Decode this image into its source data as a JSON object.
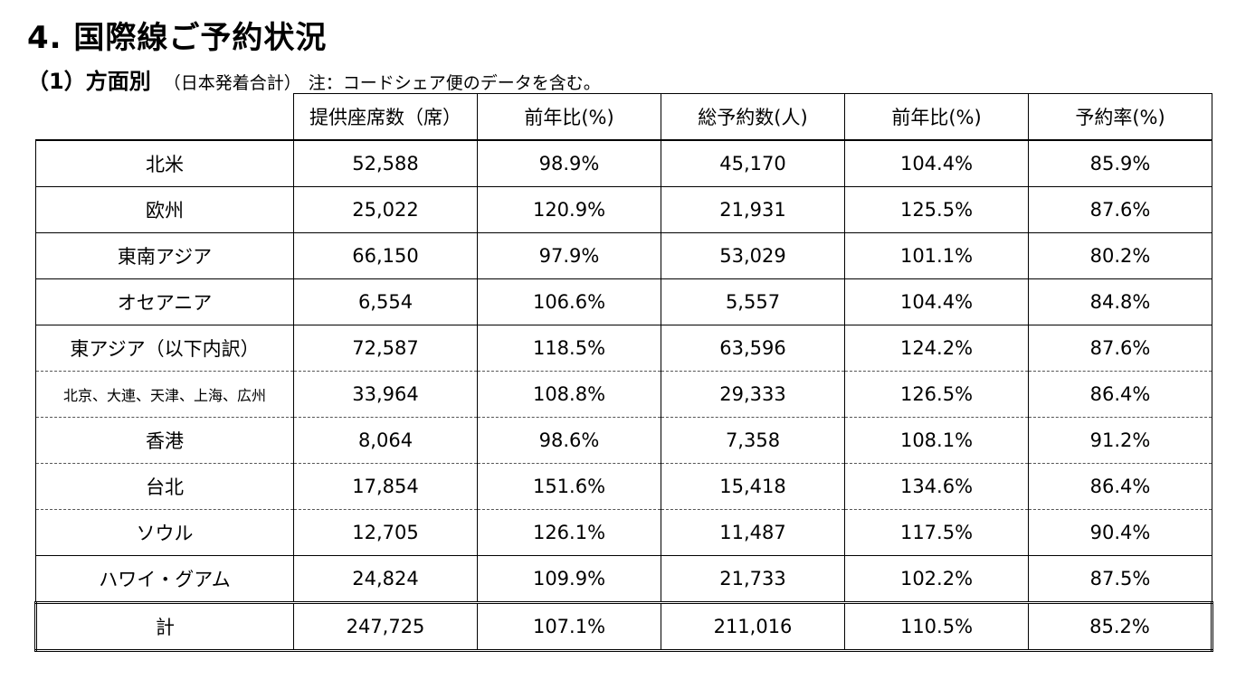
{
  "title": "4.  国際線ご予約状況",
  "subtitle": {
    "main": "（1）方面別",
    "paren": "（日本発着合計）",
    "note": "注：コードシェア便のデータを含む。"
  },
  "table": {
    "headers": [
      "提供座席数（席）",
      "前年比(%)",
      "総予約数(人)",
      "前年比(%)",
      "予約率(%)"
    ],
    "rows": [
      {
        "label": "北米",
        "cells": [
          "52,588",
          "98.9%",
          "45,170",
          "104.4%",
          "85.9%"
        ]
      },
      {
        "label": "欧州",
        "cells": [
          "25,022",
          "120.9%",
          "21,931",
          "125.5%",
          "87.6%"
        ]
      },
      {
        "label": "東南アジア",
        "cells": [
          "66,150",
          "97.9%",
          "53,029",
          "101.1%",
          "80.2%"
        ]
      },
      {
        "label": "オセアニア",
        "cells": [
          "6,554",
          "106.6%",
          "5,557",
          "104.4%",
          "84.8%"
        ]
      },
      {
        "label": "東アジア（以下内訳）",
        "cells": [
          "72,587",
          "118.5%",
          "63,596",
          "124.2%",
          "87.6%"
        ]
      },
      {
        "label": "北京、大連、天津、上海、広州",
        "cells": [
          "33,964",
          "108.8%",
          "29,333",
          "126.5%",
          "86.4%"
        ]
      },
      {
        "label": "香港",
        "cells": [
          "8,064",
          "98.6%",
          "7,358",
          "108.1%",
          "91.2%"
        ]
      },
      {
        "label": "台北",
        "cells": [
          "17,854",
          "151.6%",
          "15,418",
          "134.6%",
          "86.4%"
        ]
      },
      {
        "label": "ソウル",
        "cells": [
          "12,705",
          "126.1%",
          "11,487",
          "117.5%",
          "90.4%"
        ]
      },
      {
        "label": "ハワイ・グアム",
        "cells": [
          "24,824",
          "109.9%",
          "21,733",
          "102.2%",
          "87.5%"
        ]
      }
    ],
    "total": {
      "label": "計",
      "cells": [
        "247,725",
        "107.1%",
        "211,016",
        "110.5%",
        "85.2%"
      ]
    }
  }
}
